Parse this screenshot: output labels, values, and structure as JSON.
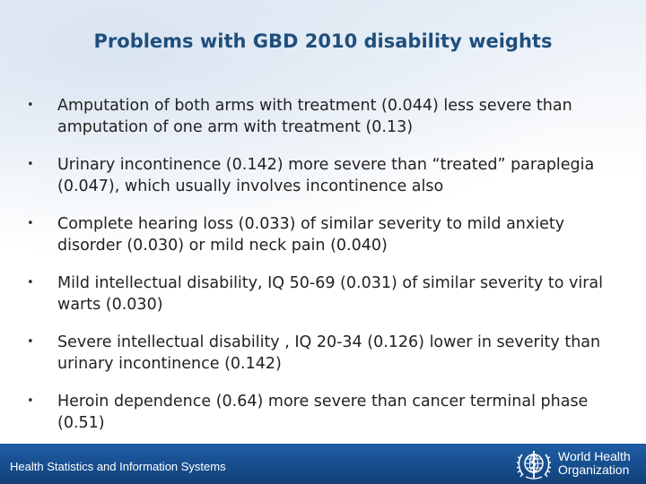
{
  "slide": {
    "title": "Problems with GBD 2010 disability weights",
    "bullet_marker": "•",
    "bullets": [
      "Amputation of both arms with treatment (0.044) less severe than amputation of one arm  with treatment (0.13)",
      "Urinary incontinence (0.142) more severe than “treated” paraplegia (0.047), which usually involves incontinence also",
      "Complete hearing loss (0.033) of similar severity to mild anxiety disorder (0.030) or mild neck pain (0.040)",
      "Mild intellectual disability, IQ 50-69 (0.031) of similar severity to viral warts (0.030)",
      "Severe intellectual disability , IQ 20-34 (0.126) lower in severity than urinary incontinence (0.142)",
      "Heroin dependence (0.64) more severe than cancer terminal phase (0.51)"
    ]
  },
  "footer": {
    "text": "Health Statistics and Information Systems",
    "logo_line1": "World Health",
    "logo_line2": "Organization",
    "logo_icon": "who-emblem-icon",
    "background_color": "#174e8e"
  },
  "colors": {
    "title": "#1f4f7d",
    "body_text": "#222222"
  }
}
